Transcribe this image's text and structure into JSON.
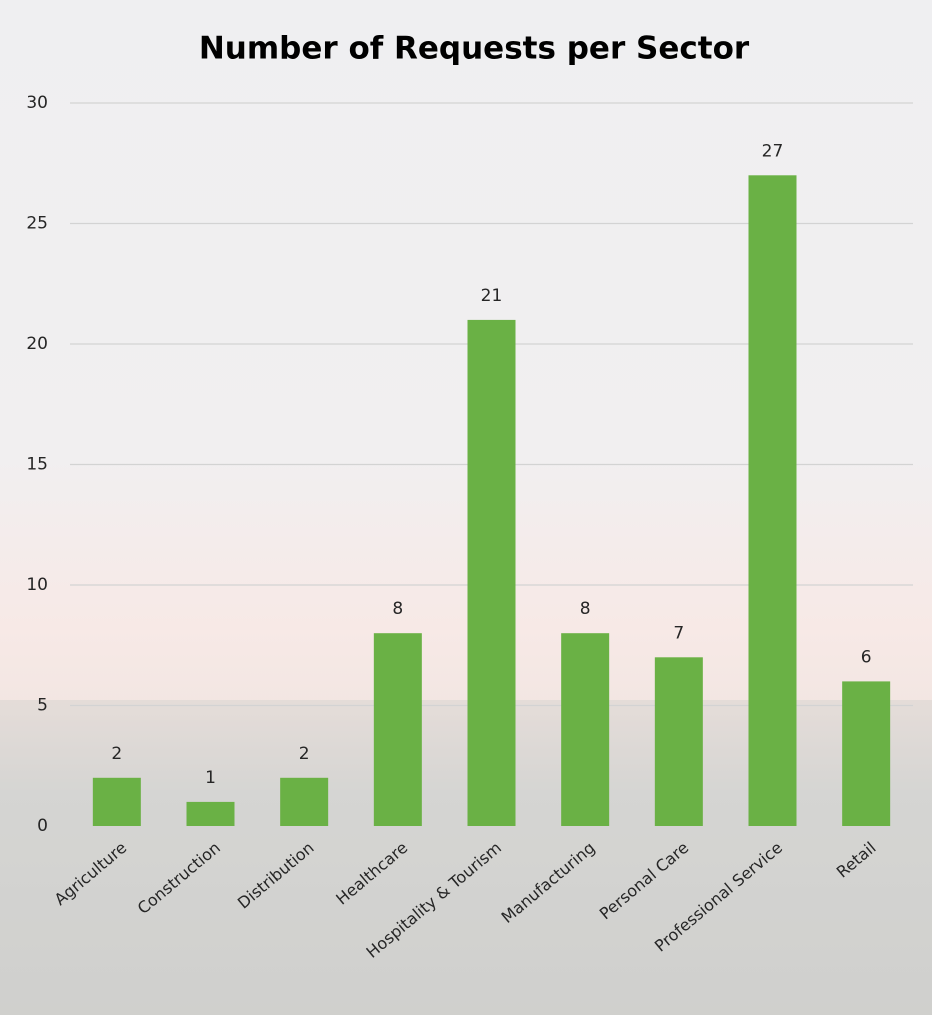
{
  "chart_data": {
    "type": "bar",
    "title": "Number of Requests per Sector",
    "categories": [
      "Agriculture",
      "Construction",
      "Distribution",
      "Healthcare",
      "Hospitality & Tourism",
      "Manufacturing",
      "Personal Care",
      "Professional Service",
      "Retail"
    ],
    "values": [
      2,
      1,
      2,
      8,
      21,
      8,
      7,
      27,
      6
    ],
    "color": "#6ab145",
    "ylim": [
      0,
      30
    ],
    "yticks": [
      0,
      5,
      10,
      15,
      20,
      25,
      30
    ],
    "grid": true,
    "data_labels": true
  }
}
